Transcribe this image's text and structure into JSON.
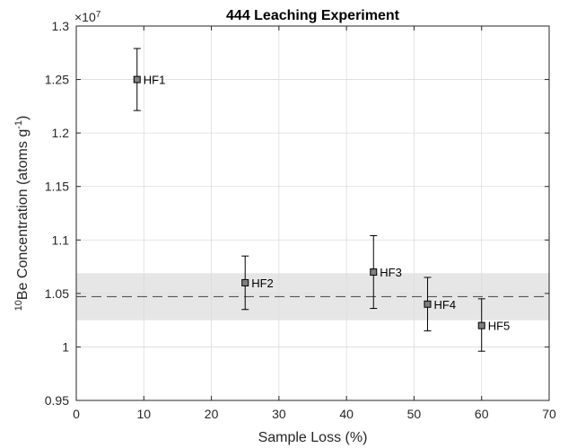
{
  "chart_data": {
    "type": "scatter",
    "title": "444 Leaching Experiment",
    "xlabel": "Sample Loss (%)",
    "ylabel_prefix": "10",
    "ylabel_main": "Be Concentration (atoms g",
    "ylabel_exp": "-1",
    "ylabel_suffix": ")",
    "y_multiplier": "×10",
    "y_multiplier_exp": "7",
    "xlim": [
      0,
      70
    ],
    "ylim": [
      0.95,
      1.3
    ],
    "xticks": [
      "0",
      "10",
      "20",
      "30",
      "40",
      "50",
      "60",
      "70"
    ],
    "yticks": [
      "0.95",
      "1",
      "1.05",
      "1.1",
      "1.15",
      "1.2",
      "1.25",
      "1.3"
    ],
    "grid": true,
    "mean_line": 1.047,
    "band": [
      1.025,
      1.069
    ],
    "points": [
      {
        "label": "HF1",
        "x": 9,
        "y": 1.25,
        "ylo": 1.221,
        "yhi": 1.279
      },
      {
        "label": "HF2",
        "x": 25,
        "y": 1.06,
        "ylo": 1.035,
        "yhi": 1.085
      },
      {
        "label": "HF3",
        "x": 44,
        "y": 1.07,
        "ylo": 1.036,
        "yhi": 1.104
      },
      {
        "label": "HF4",
        "x": 52,
        "y": 1.04,
        "ylo": 1.015,
        "yhi": 1.065
      },
      {
        "label": "HF5",
        "x": 60,
        "y": 1.02,
        "ylo": 0.996,
        "yhi": 1.045
      }
    ],
    "colors": {
      "marker": "#7f7f7f",
      "band": "#e6e6e6",
      "line": "#000000",
      "mean": "#555555"
    }
  }
}
